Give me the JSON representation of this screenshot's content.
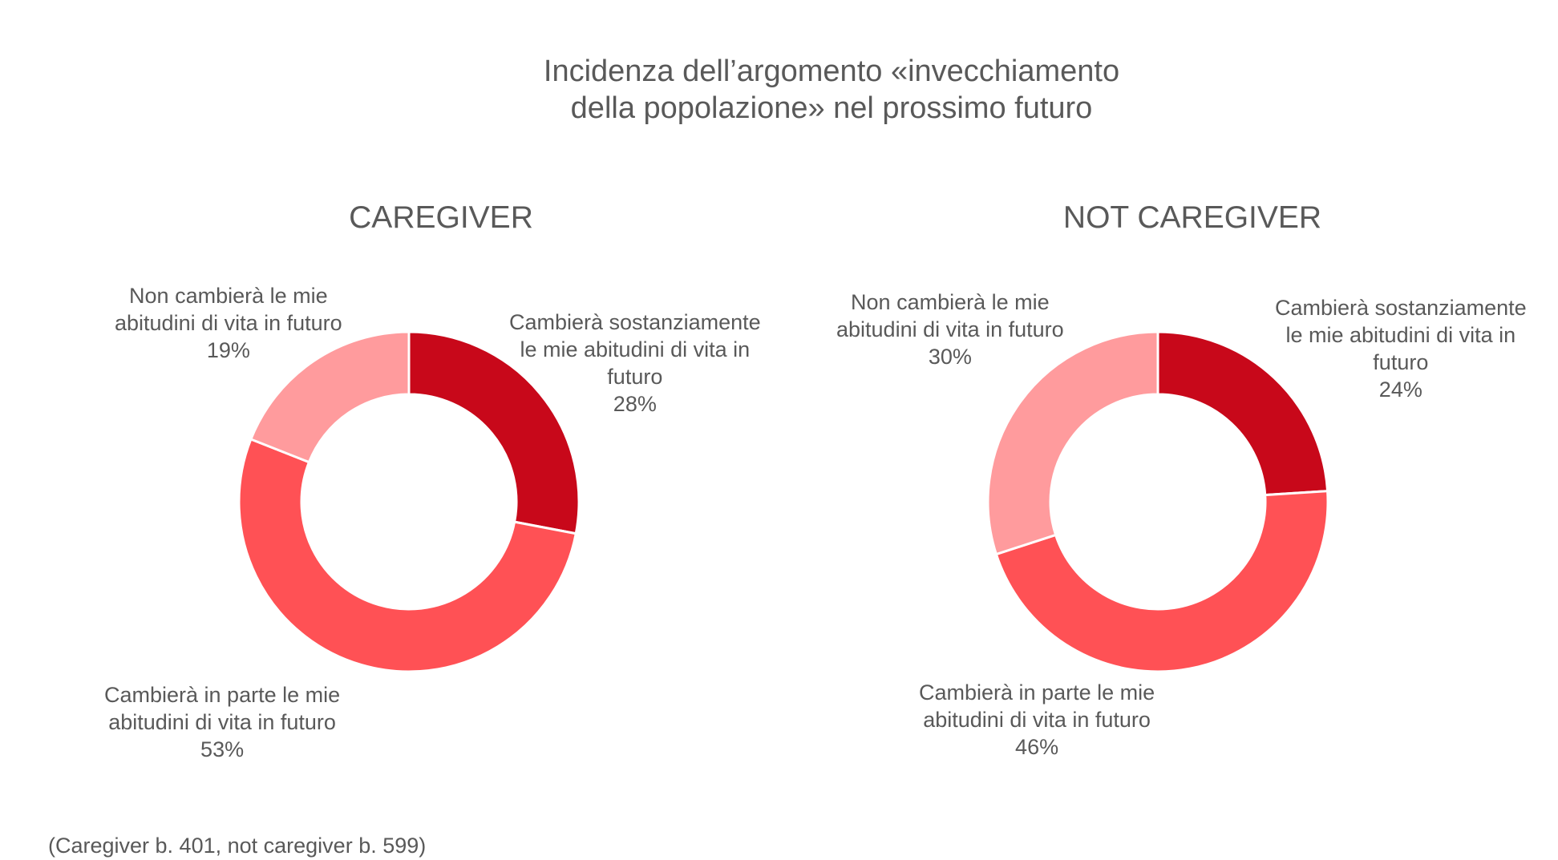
{
  "title": "Incidenza dell’argomento «invecchiamento\ndella popolazione» nel prossimo futuro",
  "colors": {
    "sostanzialmente": "#c8081a",
    "in_parte": "#ff5155",
    "non_cambiera": "#ff9b9d"
  },
  "chart_data": [
    {
      "type": "pie",
      "variant": "donut",
      "title": "CAREGIVER",
      "series": [
        {
          "name": "Cambierà sostanziamente le mie abitudini di vita in futuro",
          "value": 28,
          "label": "28%"
        },
        {
          "name": "Cambierà in parte le mie abitudini di vita in futuro",
          "value": 53,
          "label": "53%"
        },
        {
          "name": "Non cambierà le mie abitudini di vita in futuro",
          "value": 19,
          "label": "19%"
        }
      ]
    },
    {
      "type": "pie",
      "variant": "donut",
      "title": "NOT CAREGIVER",
      "series": [
        {
          "name": "Cambierà sostanziamente le mie abitudini di vita in futuro",
          "value": 24,
          "label": "24%"
        },
        {
          "name": "Cambierà in parte le mie abitudini di vita in futuro",
          "value": 46,
          "label": "46%"
        },
        {
          "name": "Non cambierà le mie abitudini di vita in futuro",
          "value": 30,
          "label": "30%"
        }
      ]
    }
  ],
  "labels": {
    "c1_sost": "Cambierà sostanziamente\nle mie abitudini di vita in\nfuturo",
    "c1_parte": "Cambierà in parte le mie\nabitudini di vita in futuro",
    "c1_non": "Non cambierà le mie\nabitudini di vita in futuro",
    "c2_sost": "Cambierà sostanziamente\nle mie abitudini di vita in\nfuturo",
    "c2_parte": "Cambierà in parte le mie\nabitudini di vita in futuro",
    "c2_non": "Non cambierà le mie\nabitudini di vita in futuro"
  },
  "footnote": "(Caregiver b. 401, not caregiver b. 599)"
}
